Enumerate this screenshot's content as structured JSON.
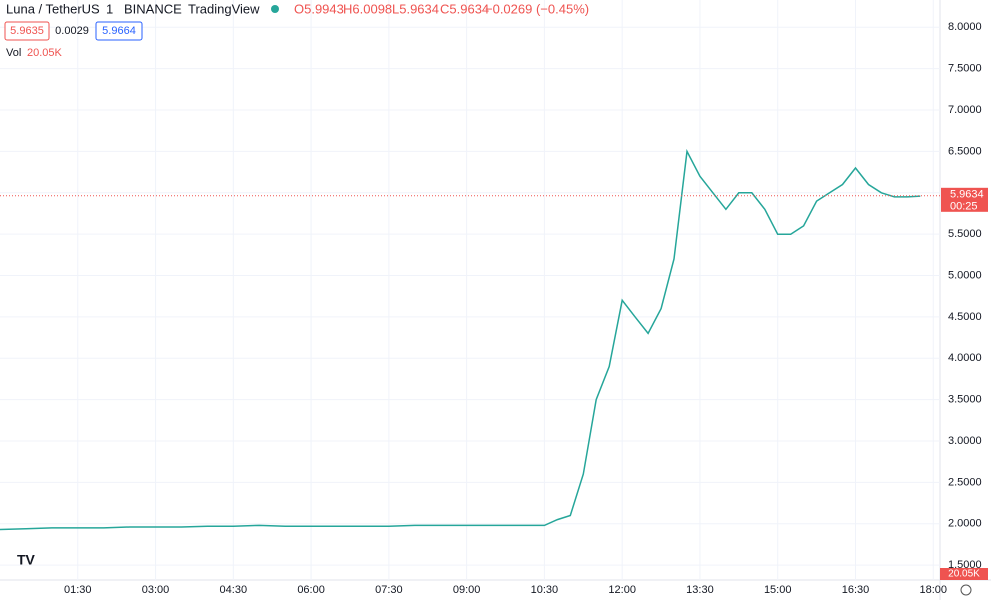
{
  "header": {
    "symbol": "Luna / TetherUS",
    "interval": "1",
    "exchange": "BINANCE",
    "source": "TradingView",
    "open": "O5.9943",
    "high": "H6.0098",
    "low": "L5.9634",
    "close": "C5.9634",
    "change": "−0.0269 (−0.45%)",
    "bid": "5.9635",
    "spread": "0.0029",
    "ask": "5.9664",
    "vol_label": "Vol",
    "vol_value": "20.05K"
  },
  "chart_data": {
    "type": "line",
    "color": "#26a69a",
    "grid": true,
    "x": [
      0,
      0.5,
      1,
      1.5,
      2,
      2.5,
      3,
      3.5,
      4,
      4.5,
      5,
      5.5,
      6,
      6.5,
      7,
      7.5,
      8,
      8.5,
      9,
      9.5,
      10,
      10.5,
      10.75,
      11,
      11.25,
      11.5,
      11.75,
      12,
      12.25,
      12.5,
      12.75,
      13,
      13.25,
      13.5,
      13.75,
      14,
      14.25,
      14.5,
      14.75,
      15,
      15.25,
      15.5,
      15.75,
      16,
      16.25,
      16.5,
      16.75,
      17,
      17.25,
      17.5,
      17.75
    ],
    "series": [
      {
        "name": "Luna / TetherUS",
        "color": "#26a69a",
        "values": [
          1.93,
          1.94,
          1.95,
          1.95,
          1.95,
          1.96,
          1.96,
          1.96,
          1.97,
          1.97,
          1.98,
          1.97,
          1.97,
          1.97,
          1.97,
          1.97,
          1.98,
          1.98,
          1.98,
          1.98,
          1.98,
          1.98,
          2.05,
          2.1,
          2.6,
          3.5,
          3.9,
          4.7,
          4.5,
          4.3,
          4.6,
          5.2,
          6.5,
          6.2,
          6.0,
          5.8,
          6.0,
          6.0,
          5.8,
          5.5,
          5.5,
          5.6,
          5.9,
          6.0,
          6.1,
          6.3,
          6.1,
          6.0,
          5.95,
          5.95,
          5.96
        ]
      }
    ],
    "last_price": {
      "value": 5.9634,
      "label": "5.9634",
      "timer": "00:25"
    },
    "xlim": [
      0,
      18.13
    ],
    "ylim": [
      1.32,
      8.33
    ],
    "xticks": [
      {
        "value": 1.5,
        "label": "01:30"
      },
      {
        "value": 3,
        "label": "03:00"
      },
      {
        "value": 4.5,
        "label": "04:30"
      },
      {
        "value": 6,
        "label": "06:00"
      },
      {
        "value": 7.5,
        "label": "07:30"
      },
      {
        "value": 9,
        "label": "09:00"
      },
      {
        "value": 10.5,
        "label": "10:30"
      },
      {
        "value": 12,
        "label": "12:00"
      },
      {
        "value": 13.5,
        "label": "13:30"
      },
      {
        "value": 15,
        "label": "15:00"
      },
      {
        "value": 16.5,
        "label": "16:30"
      },
      {
        "value": 18,
        "label": "18:00"
      }
    ],
    "yticks": [
      {
        "value": 1.5,
        "label": "1.5000"
      },
      {
        "value": 2,
        "label": "2.0000"
      },
      {
        "value": 2.5,
        "label": "2.5000"
      },
      {
        "value": 3,
        "label": "3.0000"
      },
      {
        "value": 3.5,
        "label": "3.5000"
      },
      {
        "value": 4,
        "label": "4.0000"
      },
      {
        "value": 4.5,
        "label": "4.5000"
      },
      {
        "value": 5,
        "label": "5.0000"
      },
      {
        "value": 5.5,
        "label": "5.5000"
      },
      {
        "value": 6,
        "label": "6.0000"
      },
      {
        "value": 6.5,
        "label": "6.5000"
      },
      {
        "value": 7,
        "label": "7.0000"
      },
      {
        "value": 7.5,
        "label": "7.5000"
      },
      {
        "value": 8,
        "label": "8.0000"
      }
    ]
  }
}
